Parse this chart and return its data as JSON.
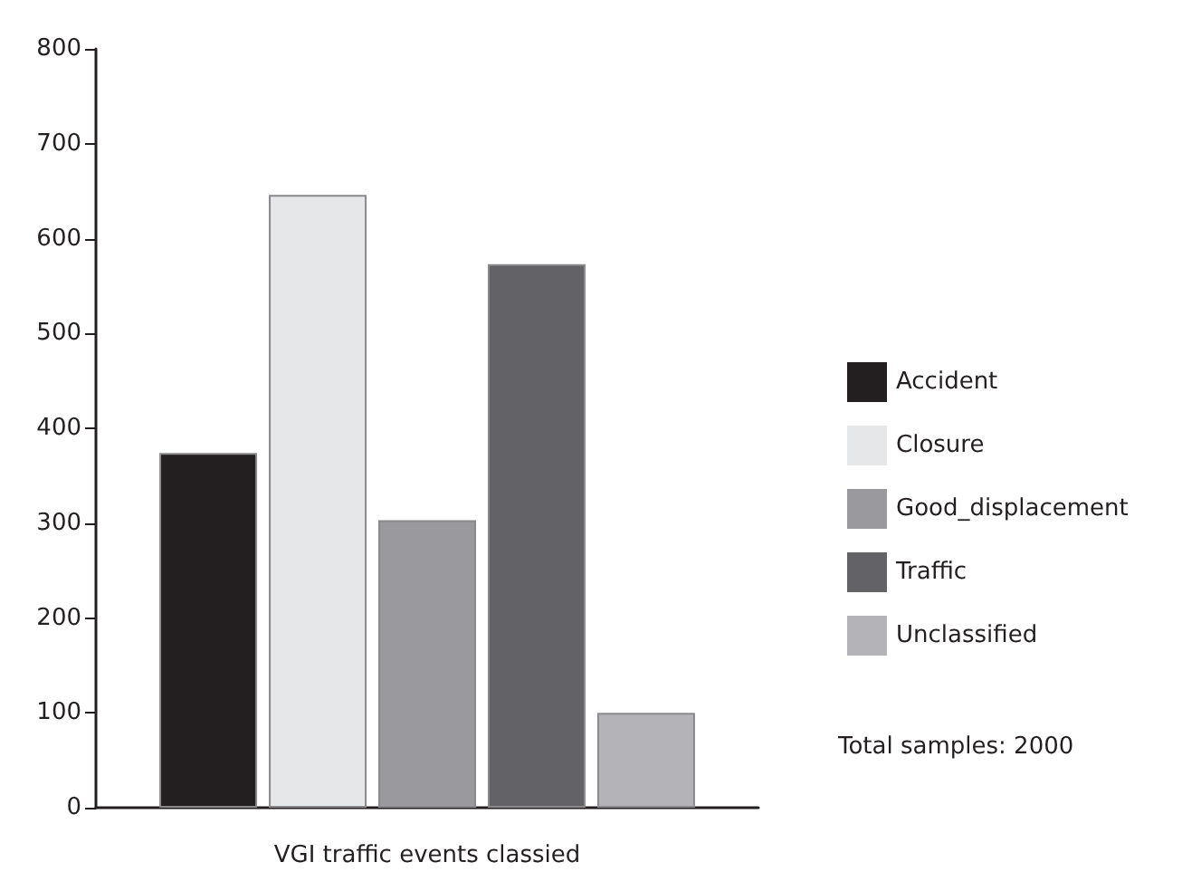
{
  "chart_data": {
    "type": "bar",
    "xlabel": "VGI traffic events classied",
    "categories": [
      null
    ],
    "series": [
      {
        "name": "Accident",
        "color": "#231f20",
        "values": [
          374
        ]
      },
      {
        "name": "Closure",
        "color": "#e6e7e9",
        "values": [
          646
        ]
      },
      {
        "name": "Good_displacement",
        "color": "#9a9a9e",
        "values": [
          303
        ]
      },
      {
        "name": "Traffic",
        "color": "#636267",
        "values": [
          573
        ]
      },
      {
        "name": "Unclassified",
        "color": "#b4b4b8",
        "values": [
          100
        ]
      }
    ],
    "ylim": [
      0,
      800
    ],
    "yticks": [
      0,
      100,
      200,
      300,
      400,
      500,
      600,
      700,
      800
    ],
    "grid": false,
    "legend": "right",
    "annotations": [
      "Total samples: 2000"
    ]
  }
}
